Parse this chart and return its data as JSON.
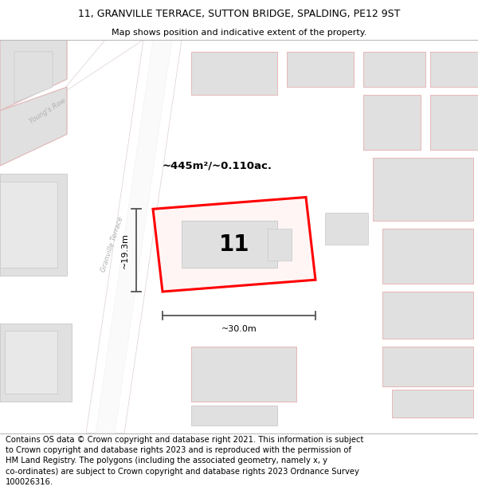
{
  "title": "11, GRANVILLE TERRACE, SUTTON BRIDGE, SPALDING, PE12 9ST",
  "subtitle": "Map shows position and indicative extent of the property.",
  "footer": "Contains OS data © Crown copyright and database right 2021. This information is subject\nto Crown copyright and database rights 2023 and is reproduced with the permission of\nHM Land Registry. The polygons (including the associated geometry, namely x, y\nco-ordinates) are subject to Crown copyright and database rights 2023 Ordnance Survey\n100026316.",
  "title_fontsize": 9,
  "subtitle_fontsize": 8,
  "footer_fontsize": 7.2,
  "map_bg": "#f2f2f2",
  "building_fill": "#e0e0e0",
  "building_edge": "#c8c8c8",
  "road_fill": "#ffffff",
  "pink_outline_fill": "#faf5f5",
  "pink_outline_edge": "#e8b8b8",
  "street_label_color": "#b0b0b0",
  "area_text": "~445m²/~0.110ac.",
  "number_text": "11",
  "dim_width_text": "~30.0m",
  "dim_height_text": "~19.3m",
  "prop_fill": "#fff5f5",
  "prop_edge": "#ff0000",
  "dim_color": "#555555"
}
